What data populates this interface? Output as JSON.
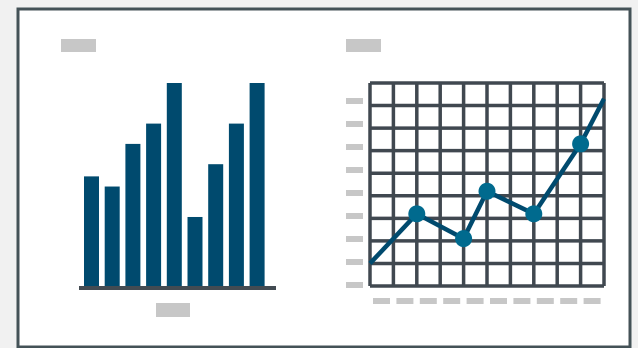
{
  "colors": {
    "frame": "#445257",
    "background": "#ffffff",
    "panel": "#f1f1f1",
    "bar": "#004a6e",
    "axis": "#434b52",
    "grid": "#404850",
    "line": "#004a6e",
    "marker": "#006a8e",
    "placeholder": "#c7c7c7"
  },
  "chart_data": [
    {
      "type": "bar",
      "categories": [
        "",
        "",
        "",
        "",
        "",
        "",
        "",
        "",
        ""
      ],
      "values": [
        54,
        49,
        70,
        80,
        100,
        34,
        60,
        80,
        100
      ],
      "ylim": [
        0,
        100
      ],
      "title": "",
      "xlabel": "",
      "ylabel": ""
    },
    {
      "type": "line",
      "x": [
        0,
        2,
        4,
        5,
        7,
        9,
        10
      ],
      "values": [
        1,
        3.2,
        2.1,
        4.2,
        3.2,
        6.3,
        8.3
      ],
      "xlim": [
        0,
        10
      ],
      "ylim": [
        0,
        9
      ],
      "grid": true,
      "markers_at": [
        1,
        2,
        3,
        4,
        5
      ],
      "title": "",
      "xlabel": "",
      "ylabel": ""
    }
  ]
}
